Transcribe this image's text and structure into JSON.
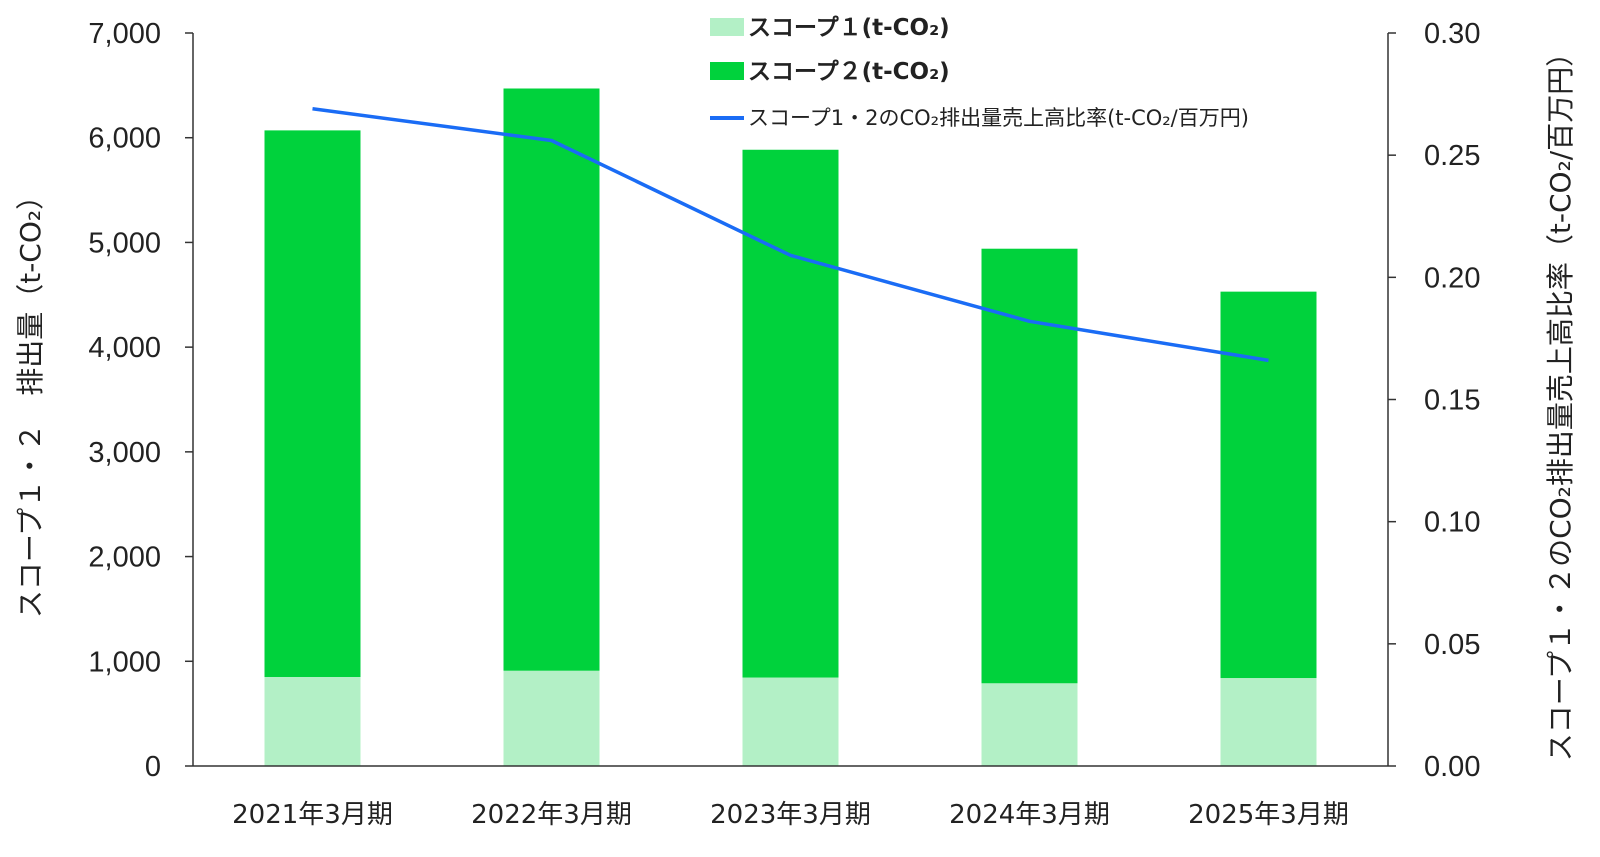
{
  "chart_data": {
    "type": "bar",
    "stacked": true,
    "categories": [
      "2021年3月期",
      "2022年3月期",
      "2023年3月期",
      "2024年3月期",
      "2025年3月期"
    ],
    "series": [
      {
        "name": "スコープ１(t-CO₂)",
        "values": [
          850,
          910,
          845,
          790,
          840
        ],
        "color": "#b3f0c6",
        "axis": "left"
      },
      {
        "name": "スコープ２(t-CO₂)",
        "values": [
          5220,
          5560,
          5040,
          4150,
          3690
        ],
        "color": "#00d23c",
        "axis": "left"
      },
      {
        "name": "スコープ1・2のCO₂排出量売上高比率(t-CO₂/百万円)",
        "type": "line",
        "values": [
          0.269,
          0.256,
          0.209,
          0.182,
          0.166
        ],
        "color": "#1a6cf5",
        "axis": "right"
      }
    ],
    "ylabel": "スコープ１・２　排出量（t-CO₂）",
    "y2label": "スコープ１・２のCO₂排出量売上高比率（t-CO₂/百万円）",
    "ylim": [
      0,
      7000
    ],
    "y2lim": [
      0,
      0.3
    ],
    "yticks": [
      "0",
      "1,000",
      "2,000",
      "3,000",
      "4,000",
      "5,000",
      "6,000",
      "7,000"
    ],
    "y2ticks": [
      "0.00",
      "0.05",
      "0.10",
      "0.15",
      "0.20",
      "0.25",
      "0.30"
    ],
    "grid": false,
    "legend_position": "top-center"
  }
}
